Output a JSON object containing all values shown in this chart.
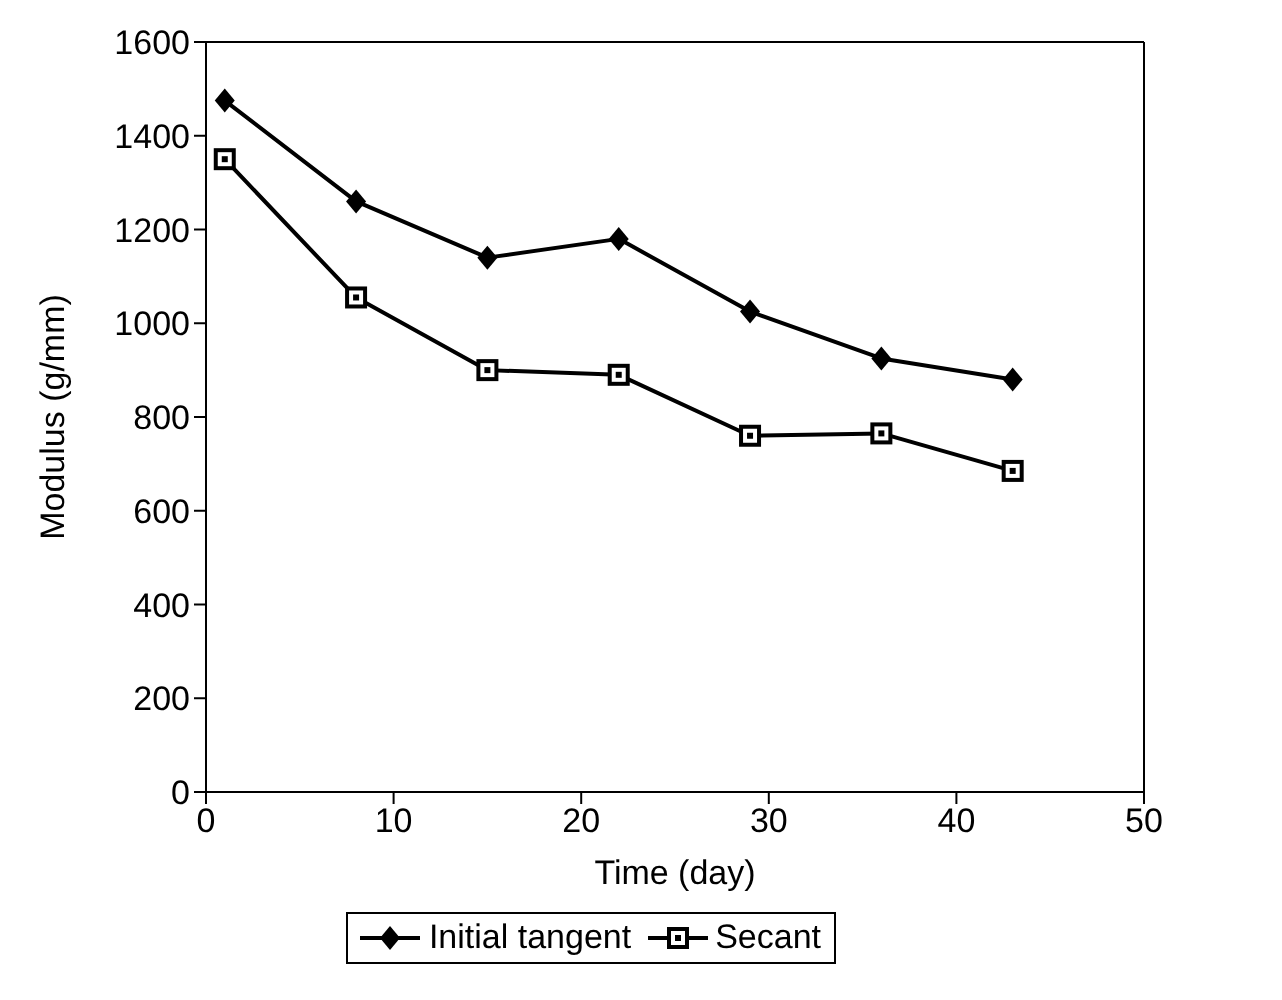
{
  "chart_data": {
    "type": "line",
    "xlabel": "Time (day)",
    "ylabel": "Modulus (g/mm)",
    "x": [
      1,
      8,
      15,
      22,
      29,
      36,
      43
    ],
    "xlim": [
      0,
      50
    ],
    "xticks": [
      0,
      10,
      20,
      30,
      40,
      50
    ],
    "ylim": [
      0,
      1600
    ],
    "yticks": [
      0,
      200,
      400,
      600,
      800,
      1000,
      1200,
      1400,
      1600
    ],
    "grid": false,
    "legend": "bottom",
    "line_style": "solid",
    "series": [
      {
        "name": "Initial tangent",
        "color": "#000000",
        "marker": "diamond",
        "values": [
          1475,
          1260,
          1140,
          1180,
          1025,
          925,
          880
        ]
      },
      {
        "name": "Secant",
        "color": "#000000",
        "marker": "square",
        "values": [
          1350,
          1055,
          900,
          890,
          760,
          765,
          685
        ]
      }
    ]
  }
}
